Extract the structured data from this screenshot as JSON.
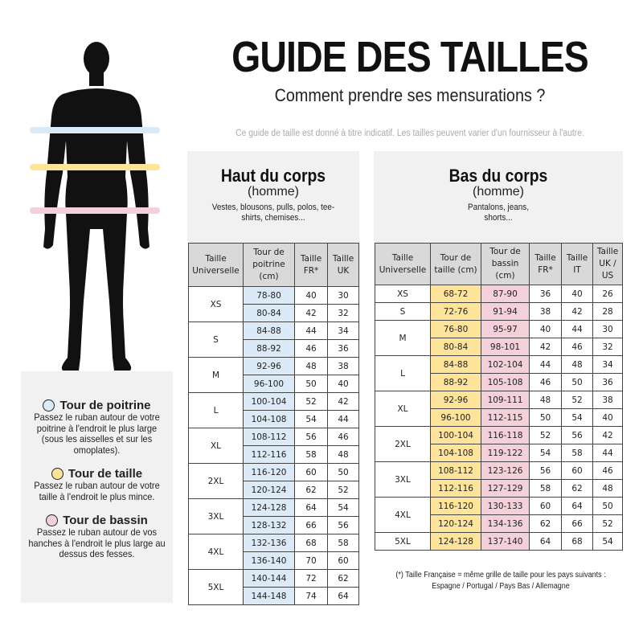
{
  "header": {
    "title": "GUIDE DES TAILLES",
    "subtitle": "Comment prendre ses mensurations ?",
    "note": "Ce guide de taille est donné à titre indicatif. Les tailles peuvent varier d'un fournisseur à l'autre."
  },
  "colors": {
    "chest": "#dbeaf6",
    "waist": "#fde49a",
    "hips": "#f3d0da",
    "panel": "#f1f1f1",
    "header": "#d9d9d9"
  },
  "figure": {
    "icon": "male-silhouette-icon"
  },
  "legend": [
    {
      "title": "Tour de poitrine",
      "text": "Passez le ruban autour de votre poitrine à l'endroit le plus large (sous les aisselles et sur les omoplates).",
      "color": "#dbeaf6"
    },
    {
      "title": "Tour de taille",
      "text": "Passez le ruban autour de votre taille à l'endroit le plus mince.",
      "color": "#fde49a"
    },
    {
      "title": "Tour de bassin",
      "text": "Passez le ruban autour de vos hanches à l'endroit le plus large au dessus des fesses.",
      "color": "#f3d0da"
    }
  ],
  "top": {
    "title": "Haut du corps",
    "subtitle": "(homme)",
    "desc": "Vestes, blousons, pulls, polos, tee-shirts, chemises...",
    "columns": [
      "Taille Universelle",
      "Tour de poitrine (cm)",
      "Taille FR*",
      "Taille UK"
    ],
    "groups": [
      {
        "size": "XS",
        "rows": [
          [
            "78-80",
            "40",
            "30"
          ],
          [
            "80-84",
            "42",
            "32"
          ]
        ]
      },
      {
        "size": "S",
        "rows": [
          [
            "84-88",
            "44",
            "34"
          ],
          [
            "88-92",
            "46",
            "36"
          ]
        ]
      },
      {
        "size": "M",
        "rows": [
          [
            "92-96",
            "48",
            "38"
          ],
          [
            "96-100",
            "50",
            "40"
          ]
        ]
      },
      {
        "size": "L",
        "rows": [
          [
            "100-104",
            "52",
            "42"
          ],
          [
            "104-108",
            "54",
            "44"
          ]
        ]
      },
      {
        "size": "XL",
        "rows": [
          [
            "108-112",
            "56",
            "46"
          ],
          [
            "112-116",
            "58",
            "48"
          ]
        ]
      },
      {
        "size": "2XL",
        "rows": [
          [
            "116-120",
            "60",
            "50"
          ],
          [
            "120-124",
            "62",
            "52"
          ]
        ]
      },
      {
        "size": "3XL",
        "rows": [
          [
            "124-128",
            "64",
            "54"
          ],
          [
            "128-132",
            "66",
            "56"
          ]
        ]
      },
      {
        "size": "4XL",
        "rows": [
          [
            "132-136",
            "68",
            "58"
          ],
          [
            "136-140",
            "70",
            "60"
          ]
        ]
      },
      {
        "size": "5XL",
        "rows": [
          [
            "140-144",
            "72",
            "62"
          ],
          [
            "144-148",
            "74",
            "64"
          ]
        ]
      }
    ]
  },
  "bottom": {
    "title": "Bas du corps",
    "subtitle": "(homme)",
    "desc": "Pantalons, jeans, shorts...",
    "columns": [
      "Taille Universelle",
      "Tour de taille (cm)",
      "Tour de bassin (cm)",
      "Taille FR*",
      "Taille IT",
      "Taille UK / US"
    ],
    "groups": [
      {
        "size": "XS",
        "rows": [
          [
            "68-72",
            "87-90",
            "36",
            "40",
            "26"
          ]
        ]
      },
      {
        "size": "S",
        "rows": [
          [
            "72-76",
            "91-94",
            "38",
            "42",
            "28"
          ]
        ]
      },
      {
        "size": "M",
        "rows": [
          [
            "76-80",
            "95-97",
            "40",
            "44",
            "30"
          ],
          [
            "80-84",
            "98-101",
            "42",
            "46",
            "32"
          ]
        ]
      },
      {
        "size": "L",
        "rows": [
          [
            "84-88",
            "102-104",
            "44",
            "48",
            "34"
          ],
          [
            "88-92",
            "105-108",
            "46",
            "50",
            "36"
          ]
        ]
      },
      {
        "size": "XL",
        "rows": [
          [
            "92-96",
            "109-111",
            "48",
            "52",
            "38"
          ],
          [
            "96-100",
            "112-115",
            "50",
            "54",
            "40"
          ]
        ]
      },
      {
        "size": "2XL",
        "rows": [
          [
            "100-104",
            "116-118",
            "52",
            "56",
            "42"
          ],
          [
            "104-108",
            "119-122",
            "54",
            "58",
            "44"
          ]
        ]
      },
      {
        "size": "3XL",
        "rows": [
          [
            "108-112",
            "123-126",
            "56",
            "60",
            "46"
          ],
          [
            "112-116",
            "127-129",
            "58",
            "62",
            "48"
          ]
        ]
      },
      {
        "size": "4XL",
        "rows": [
          [
            "116-120",
            "130-133",
            "60",
            "64",
            "50"
          ],
          [
            "120-124",
            "134-136",
            "62",
            "66",
            "52"
          ]
        ]
      },
      {
        "size": "5XL",
        "rows": [
          [
            "124-128",
            "137-140",
            "64",
            "68",
            "54"
          ]
        ]
      }
    ]
  },
  "footnote": {
    "line1": "(*) Taille Française = même grille de taille pour les pays suivants :",
    "line2": "Espagne / Portugal / Pays Bas / Allemagne"
  }
}
